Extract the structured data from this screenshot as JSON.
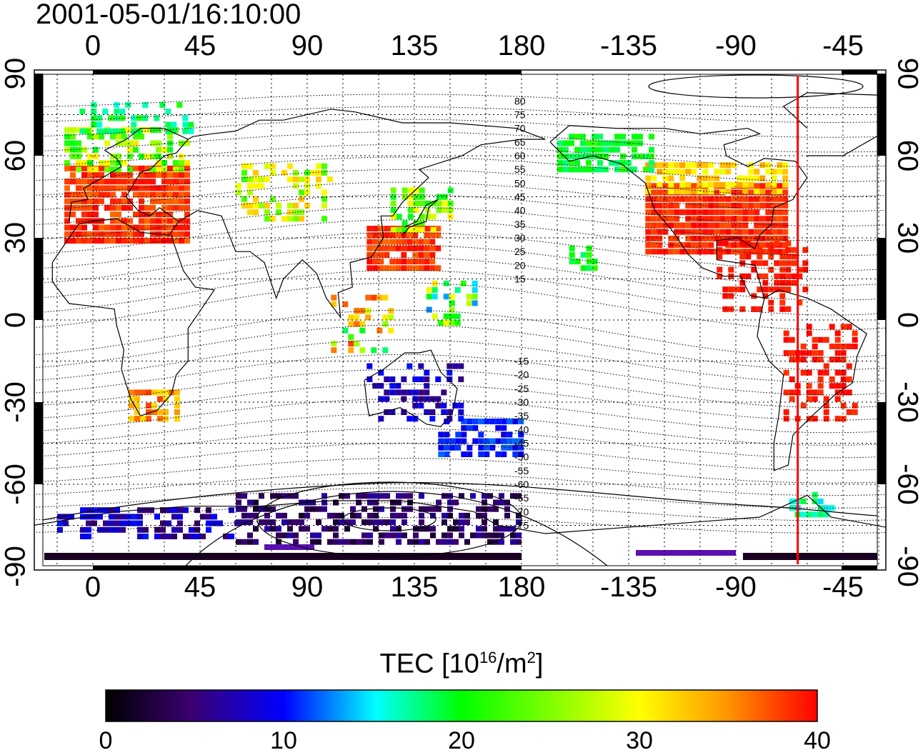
{
  "timestamp": "2001-05-01/16:10:00",
  "lon_ticks_top": [
    "0",
    "45",
    "90",
    "135",
    "180",
    "-135",
    "-90",
    "-45"
  ],
  "lon_ticks_bottom": [
    "0",
    "45",
    "90",
    "135",
    "180",
    "-135",
    "-90",
    "-45"
  ],
  "lat_ticks": [
    "90",
    "60",
    "30",
    "0",
    "-30",
    "-60",
    "-90"
  ],
  "contour_labels": [
    "80",
    "75",
    "70",
    "65",
    "60",
    "55",
    "50",
    "45",
    "40",
    "35",
    "30",
    "25",
    "20",
    "15",
    "-15",
    "-20",
    "-25",
    "-30",
    "-35",
    "-40",
    "-45",
    "-50",
    "-55",
    "-60",
    "-65",
    "-70",
    "-75"
  ],
  "colorbar": {
    "title_main": "TEC  [10",
    "title_sup1": "16",
    "title_mid": "/m",
    "title_sup2": "2",
    "title_end": "]",
    "ticks": [
      "0",
      "10",
      "20",
      "30",
      "40"
    ],
    "range": [
      0,
      40
    ],
    "colors": [
      "#000000",
      "#3a0070",
      "#0000ff",
      "#00ffff",
      "#00ff00",
      "#ffff00",
      "#ff9900",
      "#ff0000"
    ]
  },
  "terminator_longitude": -64,
  "terminator_color": "#ff0000",
  "map_extent": {
    "lon": [
      -25,
      335
    ],
    "lat": [
      -90,
      90
    ]
  }
}
